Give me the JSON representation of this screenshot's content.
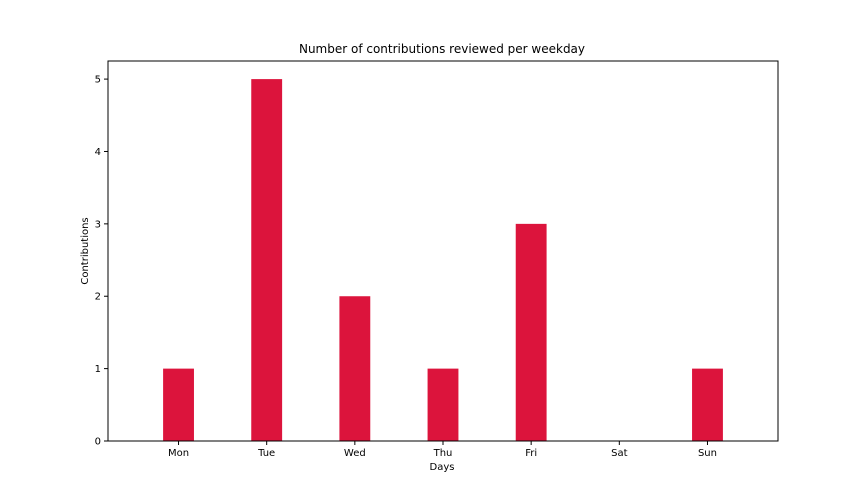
{
  "chart_data": {
    "type": "bar",
    "title": "Number of contributions reviewed per weekday",
    "xlabel": "Days",
    "ylabel": "Contributions",
    "categories": [
      "Mon",
      "Tue",
      "Wed",
      "Thu",
      "Fri",
      "Sat",
      "Sun"
    ],
    "values": [
      1,
      5,
      2,
      1,
      3,
      0,
      1
    ],
    "ylim": [
      0,
      5.25
    ],
    "yticks": [
      0,
      1,
      2,
      3,
      4,
      5
    ],
    "grid": false,
    "legend": "none",
    "bar_color": "#dc143c"
  }
}
